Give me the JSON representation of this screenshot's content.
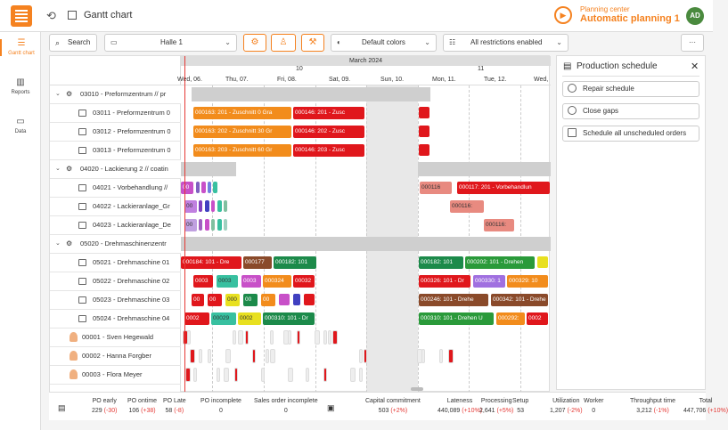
{
  "app": {
    "title": "Gantt chart",
    "planning_subtitle": "Planning center",
    "planning_title": "Automatic planning 1",
    "avatar": "AD"
  },
  "nav": [
    {
      "label": "Gantt chart",
      "icon": "gantt-icon"
    },
    {
      "label": "Reports",
      "icon": "chart-icon"
    },
    {
      "label": "Data",
      "icon": "folder-icon"
    }
  ],
  "toolbar": {
    "search": "Search",
    "hall": "Halle 1",
    "colors": "Default colors",
    "restrictions": "All restrictions enabled",
    "more": "···"
  },
  "timeline": {
    "month": "March 2024",
    "weeks": [
      "10",
      "11"
    ],
    "days": [
      "Wed, 06.",
      "Thu, 07.",
      "Fri, 08.",
      "Sat, 09.",
      "Sun, 10.",
      "Mon, 11.",
      "Tue, 12.",
      "Wed,"
    ]
  },
  "rows": [
    {
      "label": "03010 - Preformzentrum // pr",
      "type": "group"
    },
    {
      "label": "03011 - Preformzentrum 0",
      "type": "resource"
    },
    {
      "label": "03012 - Preformzentrum 0",
      "type": "resource"
    },
    {
      "label": "03013 - Preformzentrum 0",
      "type": "resource"
    },
    {
      "label": "04020 - Lackierung 2 // coatin",
      "type": "group"
    },
    {
      "label": "04021 - Vorbehandlung //",
      "type": "resource"
    },
    {
      "label": "04022 - Lackieranlage_Gr",
      "type": "resource"
    },
    {
      "label": "04023 - Lackieranlage_De",
      "type": "resource"
    },
    {
      "label": "05020 - Drehmaschinenzentr",
      "type": "group"
    },
    {
      "label": "05021 - Drehmaschine 01",
      "type": "resource"
    },
    {
      "label": "05022 - Drehmaschine 02",
      "type": "resource"
    },
    {
      "label": "05023 - Drehmaschine 03",
      "type": "resource"
    },
    {
      "label": "05024 - Drehmaschine 04",
      "type": "resource"
    },
    {
      "label": "00001 - Sven Hegewald",
      "type": "worker"
    },
    {
      "label": "00002 - Hanna Forgber",
      "type": "worker"
    },
    {
      "label": "00003 - Flora Meyer",
      "type": "worker"
    }
  ],
  "bars": {
    "r1": [
      "000163: 201 - Zuschnitt 0 Gra",
      "000146: 201 - Zusc"
    ],
    "r2": [
      "000163: 202 - Zuschnitt 30 Gr",
      "000146: 202 - Zusc"
    ],
    "r3": [
      "000163: 203 - Zuschnitt 60 Gr",
      "000146: 203 - Zusc"
    ],
    "r5": [
      "00",
      "000116",
      "000117: 201 - Vorbehandlun"
    ],
    "r6": [
      "00",
      "000116:"
    ],
    "r7": [
      "00",
      "000116:"
    ],
    "r9": [
      "000184: 101 - Dre",
      "000177",
      "000182: 101",
      "000182: 101",
      "000202: 101 - Drehen"
    ],
    "r10": [
      "0003",
      "0003",
      "0003",
      "000324",
      "00032",
      "000326: 101 - Dr",
      "000330: 1",
      "000329: 10"
    ],
    "r11": [
      "00",
      "00",
      "000",
      "00",
      "00",
      "000246: 101 - Drehe",
      "000342: 101 - Drehe"
    ],
    "r12": [
      "0002",
      "00029",
      "0002",
      "000310: 101 - Dr",
      "000310: 101 - Drehen U",
      "000292:",
      "0002"
    ]
  },
  "panel": {
    "title": "Production schedule",
    "buttons": [
      "Repair schedule",
      "Close gaps",
      "Schedule all unscheduled orders"
    ]
  },
  "kpis": [
    {
      "label": "PO early",
      "value": "229",
      "delta": "(-30)"
    },
    {
      "label": "PO ontime",
      "value": "106",
      "delta": "(+38)"
    },
    {
      "label": "PO Late",
      "value": "58",
      "delta": "(-8)"
    },
    {
      "label": "PO incomplete",
      "value": "0",
      "delta": ""
    },
    {
      "label": "Sales order incomplete",
      "value": "0",
      "delta": ""
    },
    {
      "label": "Capital commitment",
      "value": "503",
      "delta": "(+2%)"
    },
    {
      "label": "Lateness",
      "value": "440,089",
      "delta": "(+10%)"
    },
    {
      "label": "Processing",
      "value": "2,641",
      "delta": "(+5%)"
    },
    {
      "label": "Setup",
      "value": "53",
      "delta": ""
    },
    {
      "label": "Utilization",
      "value": "1,207",
      "delta": "(-2%)"
    },
    {
      "label": "Worker",
      "value": "0",
      "delta": ""
    },
    {
      "label": "Throughput time",
      "value": "3,212",
      "delta": "(-1%)"
    },
    {
      "label": "Total",
      "value": "447,706",
      "delta": "(+10%)"
    }
  ]
}
